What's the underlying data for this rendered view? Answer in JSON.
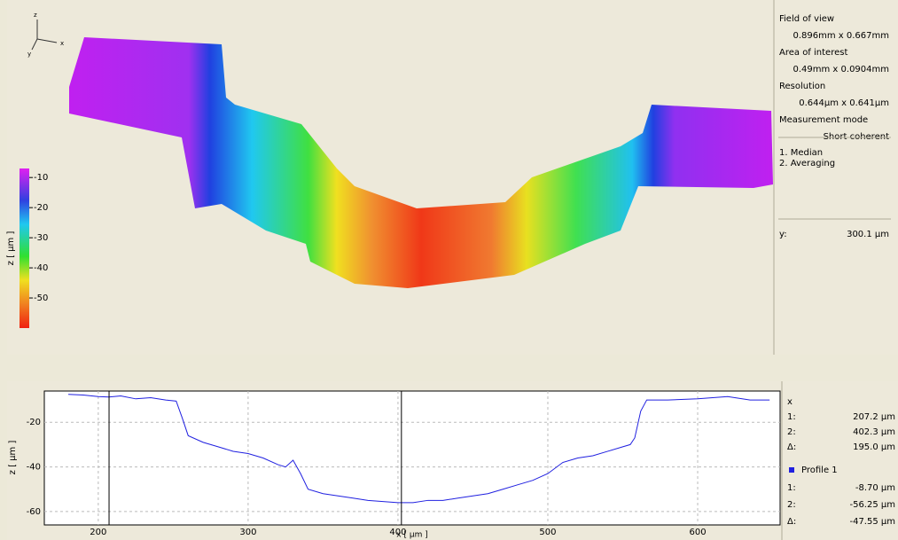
{
  "axis_triad": {
    "z": "z",
    "x": "x",
    "y": "y"
  },
  "colorbar": {
    "label": "z [ µm ]",
    "lim": [
      -60,
      -7
    ],
    "ticks": [
      -10,
      -20,
      -30,
      -40,
      -50
    ]
  },
  "info_panel": {
    "items": [
      "Field of view",
      "0.896mm x 0.667mm",
      "Area of interest",
      "0.49mm x 0.0904mm",
      "Resolution",
      "0.644µm x 0.641µm",
      "Measurement mode",
      "Short coherent"
    ],
    "filters": [
      "1. Median",
      "2. Averaging"
    ],
    "y_label": "y:",
    "y_value": "300.1 µm"
  },
  "chart_data": {
    "type": "line",
    "xlabel": "x [ µm ]",
    "ylabel": "z [ µm ]",
    "x": [
      180,
      190,
      200,
      207,
      215,
      225,
      235,
      245,
      252,
      256,
      260,
      270,
      280,
      290,
      300,
      310,
      320,
      325,
      330,
      335,
      340,
      350,
      360,
      370,
      380,
      390,
      400,
      410,
      420,
      430,
      440,
      450,
      460,
      470,
      480,
      490,
      500,
      510,
      520,
      530,
      540,
      550,
      555,
      558,
      562,
      566,
      580,
      600,
      620,
      635,
      648
    ],
    "series": [
      {
        "name": "Profile 1",
        "color": "#2020e0",
        "values": [
          -7.5,
          -7.8,
          -8.5,
          -8.7,
          -8.2,
          -9.5,
          -9,
          -10,
          -10.5,
          -18,
          -26,
          -29,
          -31,
          -33,
          -34,
          -36,
          -39,
          -40,
          -37,
          -43,
          -50,
          -52,
          -53,
          -54,
          -55,
          -55.5,
          -56,
          -56,
          -55,
          -55,
          -54,
          -53,
          -52,
          -50,
          -48,
          -46,
          -43,
          -38,
          -36,
          -35,
          -33,
          -31,
          -30,
          -27,
          -15,
          -10,
          -10,
          -9.5,
          -8.5,
          -10,
          -10
        ]
      }
    ],
    "xlim": [
      164,
      655
    ],
    "ylim": [
      -66,
      -6
    ],
    "xticks": [
      200,
      300,
      400,
      500,
      600
    ],
    "yticks": [
      -20,
      -40,
      -60
    ],
    "grid": true,
    "cursors": [
      207.2,
      402.3
    ]
  },
  "readout": {
    "x_header": "x",
    "x_rows": [
      [
        "1:",
        "207.2 µm"
      ],
      [
        "2:",
        "402.3 µm"
      ],
      [
        "Δ:",
        "195.0 µm"
      ]
    ],
    "z_rows": [
      [
        "1:",
        "-8.70 µm"
      ],
      [
        "2:",
        "-56.25 µm"
      ],
      [
        "Δ:",
        "-47.55 µm"
      ]
    ]
  }
}
